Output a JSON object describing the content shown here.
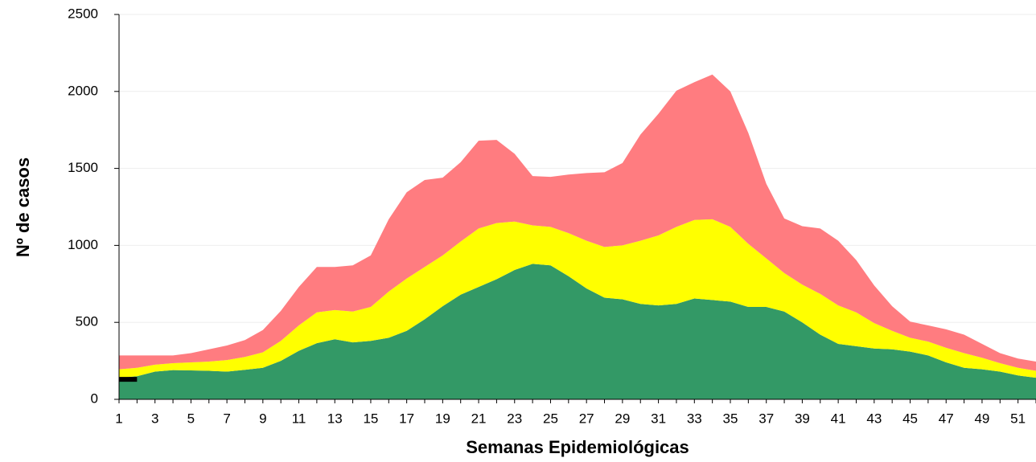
{
  "chart_data": {
    "type": "area",
    "stacked": true,
    "y_label": "Nº de casos",
    "x_label": "Semanas Epidemiológicas",
    "categories": [
      1,
      null,
      3,
      null,
      5,
      null,
      7,
      null,
      9,
      null,
      11,
      null,
      13,
      null,
      15,
      null,
      17,
      null,
      19,
      null,
      21,
      null,
      23,
      null,
      25,
      null,
      27,
      null,
      29,
      null,
      31,
      null,
      33,
      null,
      35,
      null,
      37,
      null,
      39,
      null,
      41,
      null,
      43,
      null,
      45,
      null,
      47,
      null,
      49,
      null,
      51,
      null
    ],
    "series": [
      {
        "color": "#339966",
        "values": [
          140,
          150,
          180,
          190,
          188,
          185,
          180,
          192,
          205,
          250,
          315,
          365,
          390,
          370,
          380,
          400,
          445,
          520,
          605,
          680,
          730,
          780,
          840,
          880,
          870,
          800,
          720,
          660,
          650,
          620,
          610,
          620,
          655,
          645,
          635,
          600,
          600,
          570,
          500,
          420,
          360,
          345,
          330,
          325,
          310,
          285,
          240,
          205,
          195,
          180,
          155,
          140
        ]
      },
      {
        "color": "#ffff00",
        "values": [
          55,
          55,
          45,
          45,
          52,
          60,
          75,
          83,
          100,
          130,
          165,
          200,
          190,
          200,
          220,
          300,
          340,
          340,
          330,
          345,
          380,
          365,
          315,
          250,
          250,
          280,
          310,
          330,
          350,
          410,
          455,
          500,
          510,
          525,
          485,
          410,
          315,
          250,
          245,
          265,
          250,
          220,
          165,
          120,
          90,
          90,
          95,
          95,
          75,
          55,
          50,
          45
        ]
      },
      {
        "color": "#ff7c80",
        "values": [
          90,
          80,
          60,
          50,
          60,
          80,
          95,
          110,
          145,
          195,
          250,
          295,
          280,
          300,
          335,
          470,
          560,
          565,
          505,
          515,
          570,
          540,
          440,
          320,
          325,
          380,
          440,
          485,
          535,
          690,
          790,
          885,
          895,
          940,
          880,
          720,
          485,
          355,
          380,
          425,
          420,
          340,
          245,
          160,
          105,
          105,
          120,
          120,
          90,
          65,
          60,
          60
        ]
      },
      {
        "type": "line",
        "color": "#000000",
        "values": [
          130,
          130,
          null,
          null,
          null,
          null,
          null,
          null,
          null,
          null,
          null,
          null,
          null,
          null,
          null,
          null,
          null,
          null,
          null,
          null,
          null,
          null,
          null,
          null,
          null,
          null,
          null,
          null,
          null,
          null,
          null,
          null,
          null,
          null,
          null,
          null,
          null,
          null,
          null,
          null,
          null,
          null,
          null,
          null,
          null,
          null,
          null,
          null,
          null,
          null,
          null,
          null
        ]
      }
    ],
    "ylim": [
      0,
      2500
    ],
    "yticks": [
      0,
      500,
      1000,
      1500,
      2000,
      2500
    ],
    "grid": true
  }
}
